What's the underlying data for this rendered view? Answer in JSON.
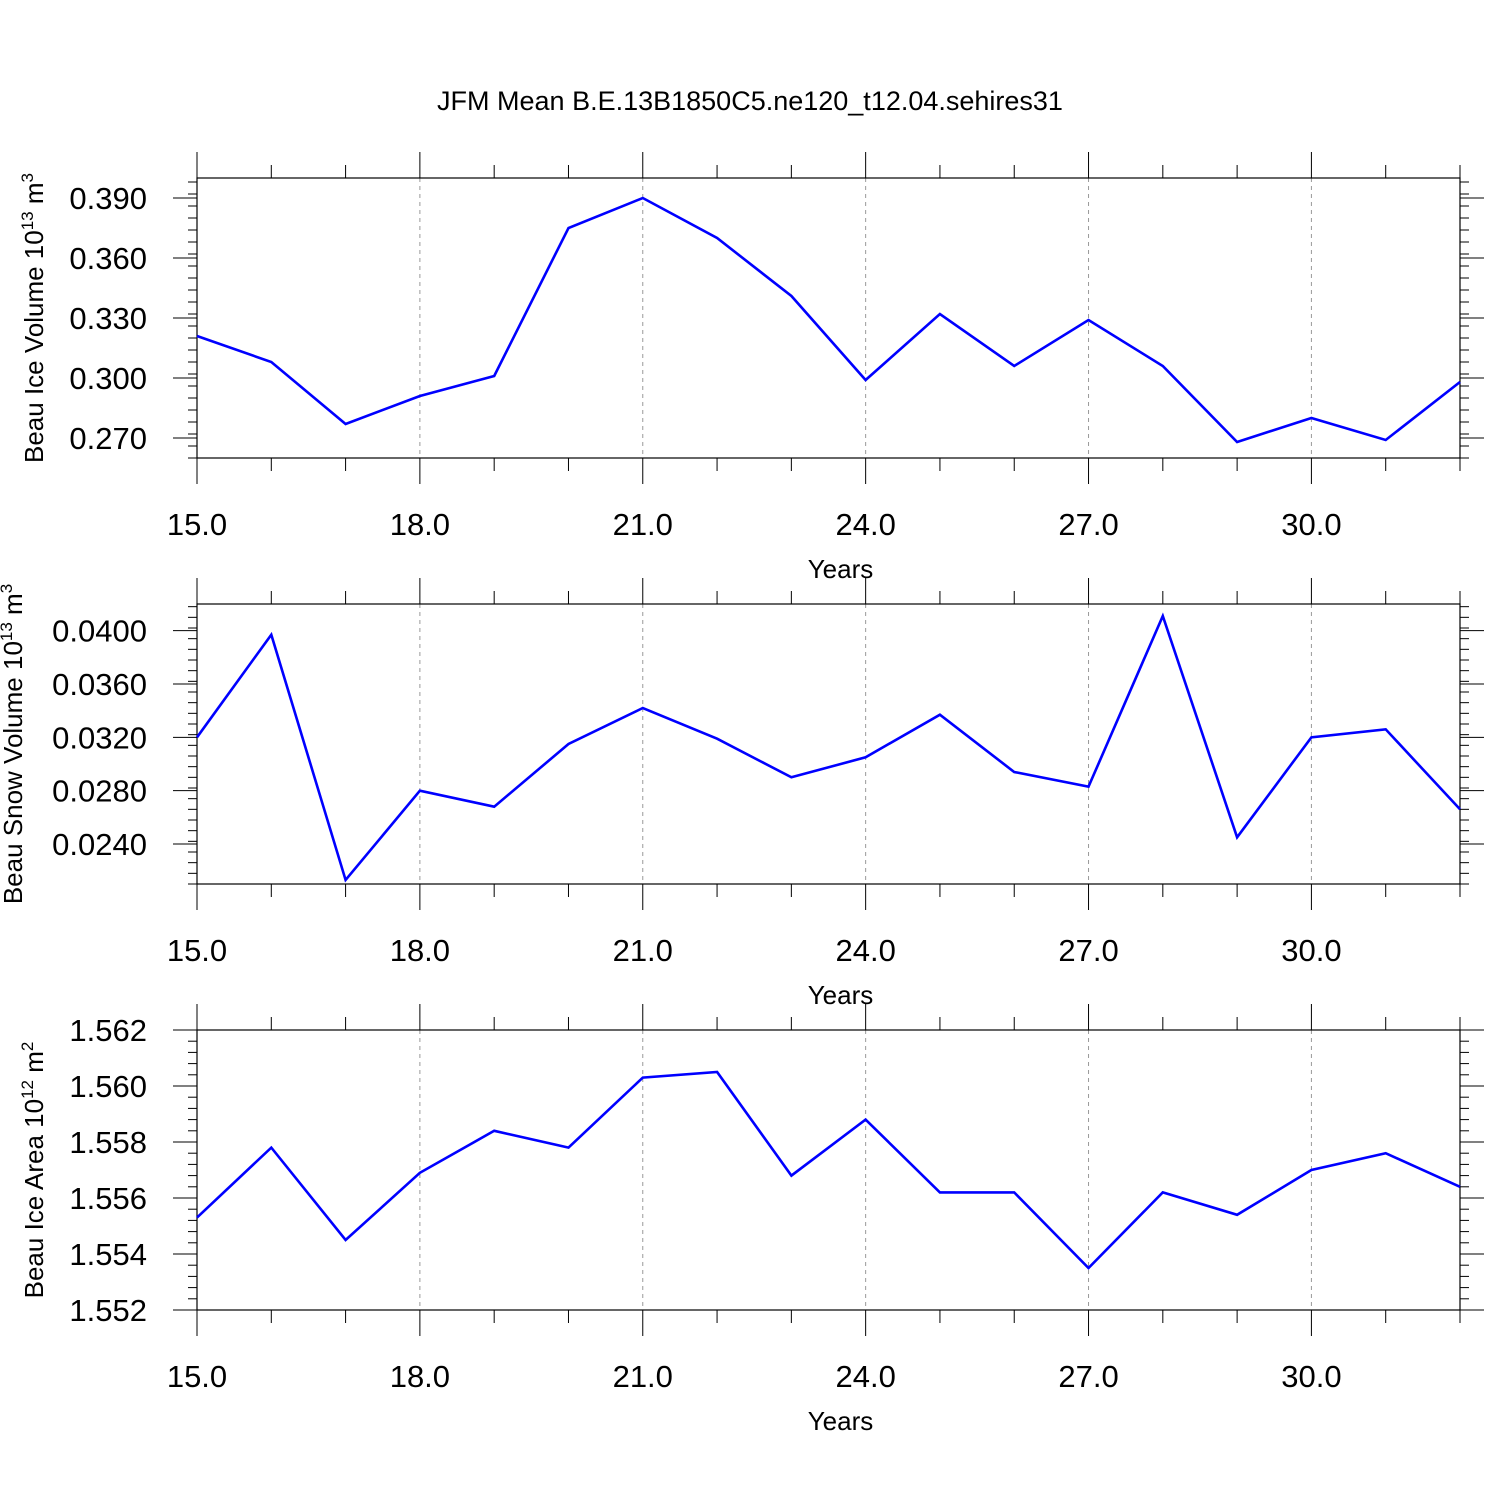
{
  "figure_title": "JFM Mean B.E.13B1850C5.ne120_t12.04.sehires31",
  "style": {
    "line_color": "#0000ff",
    "grid_color": "#999999",
    "axis_color": "#000000"
  },
  "chart_data": [
    {
      "type": "line",
      "xlabel": "Years",
      "ylabel": {
        "text": "Beau Ice Volume 10",
        "sup": "13",
        "unit": " m",
        "unit_sup": "3"
      },
      "x": [
        15,
        16,
        17,
        18,
        19,
        20,
        21,
        22,
        23,
        24,
        25,
        26,
        27,
        28,
        29,
        30,
        31,
        32
      ],
      "series": [
        {
          "values": [
            0.321,
            0.308,
            0.277,
            0.291,
            0.301,
            0.375,
            0.39,
            0.37,
            0.341,
            0.299,
            0.332,
            0.306,
            0.329,
            0.306,
            0.268,
            0.28,
            0.269,
            0.298
          ]
        }
      ],
      "xlim": [
        15,
        32
      ],
      "ylim": [
        0.26,
        0.4
      ],
      "x_ticks": [
        15,
        18,
        21,
        24,
        27,
        30
      ],
      "x_tick_labels": [
        "15.0",
        "18.0",
        "21.0",
        "24.0",
        "27.0",
        "30.0"
      ],
      "y_ticks": [
        0.27,
        0.3,
        0.33,
        0.36,
        0.39
      ],
      "y_tick_labels": [
        "0.270",
        "0.300",
        "0.330",
        "0.360",
        "0.390"
      ],
      "y_minor_step": 0.006,
      "grid": "vertical-dashed"
    },
    {
      "type": "line",
      "xlabel": "Years",
      "ylabel": {
        "text": "Beau Snow Volume 10",
        "sup": "13",
        "unit": " m",
        "unit_sup": "3"
      },
      "x": [
        15,
        16,
        17,
        18,
        19,
        20,
        21,
        22,
        23,
        24,
        25,
        26,
        27,
        28,
        29,
        30,
        31,
        32
      ],
      "series": [
        {
          "values": [
            0.032,
            0.0397,
            0.0213,
            0.028,
            0.0268,
            0.0315,
            0.0342,
            0.0319,
            0.029,
            0.0305,
            0.0337,
            0.0294,
            0.0283,
            0.0411,
            0.0245,
            0.032,
            0.0326,
            0.0266
          ]
        }
      ],
      "xlim": [
        15,
        32
      ],
      "ylim": [
        0.021,
        0.042
      ],
      "x_ticks": [
        15,
        18,
        21,
        24,
        27,
        30
      ],
      "x_tick_labels": [
        "15.0",
        "18.0",
        "21.0",
        "24.0",
        "27.0",
        "30.0"
      ],
      "y_ticks": [
        0.024,
        0.028,
        0.032,
        0.036,
        0.04
      ],
      "y_tick_labels": [
        "0.0240",
        "0.0280",
        "0.0320",
        "0.0360",
        "0.0400"
      ],
      "y_minor_step": 0.0008,
      "grid": "vertical-dashed"
    },
    {
      "type": "line",
      "xlabel": "Years",
      "ylabel": {
        "text": "Beau Ice Area 10",
        "sup": "12",
        "unit": " m",
        "unit_sup": "2"
      },
      "x": [
        15,
        16,
        17,
        18,
        19,
        20,
        21,
        22,
        23,
        24,
        25,
        26,
        27,
        28,
        29,
        30,
        31,
        32
      ],
      "series": [
        {
          "values": [
            1.5553,
            1.5578,
            1.5545,
            1.5569,
            1.5584,
            1.5578,
            1.5603,
            1.5605,
            1.5568,
            1.5588,
            1.5562,
            1.5562,
            1.5535,
            1.5562,
            1.5554,
            1.557,
            1.5576,
            1.5564
          ]
        }
      ],
      "xlim": [
        15,
        32
      ],
      "ylim": [
        1.552,
        1.562
      ],
      "x_ticks": [
        15,
        18,
        21,
        24,
        27,
        30
      ],
      "x_tick_labels": [
        "15.0",
        "18.0",
        "21.0",
        "24.0",
        "27.0",
        "30.0"
      ],
      "y_ticks": [
        1.552,
        1.554,
        1.556,
        1.558,
        1.56,
        1.562
      ],
      "y_tick_labels": [
        "1.552",
        "1.554",
        "1.556",
        "1.558",
        "1.560",
        "1.562"
      ],
      "y_minor_step": 0.0004,
      "grid": "vertical-dashed"
    }
  ]
}
